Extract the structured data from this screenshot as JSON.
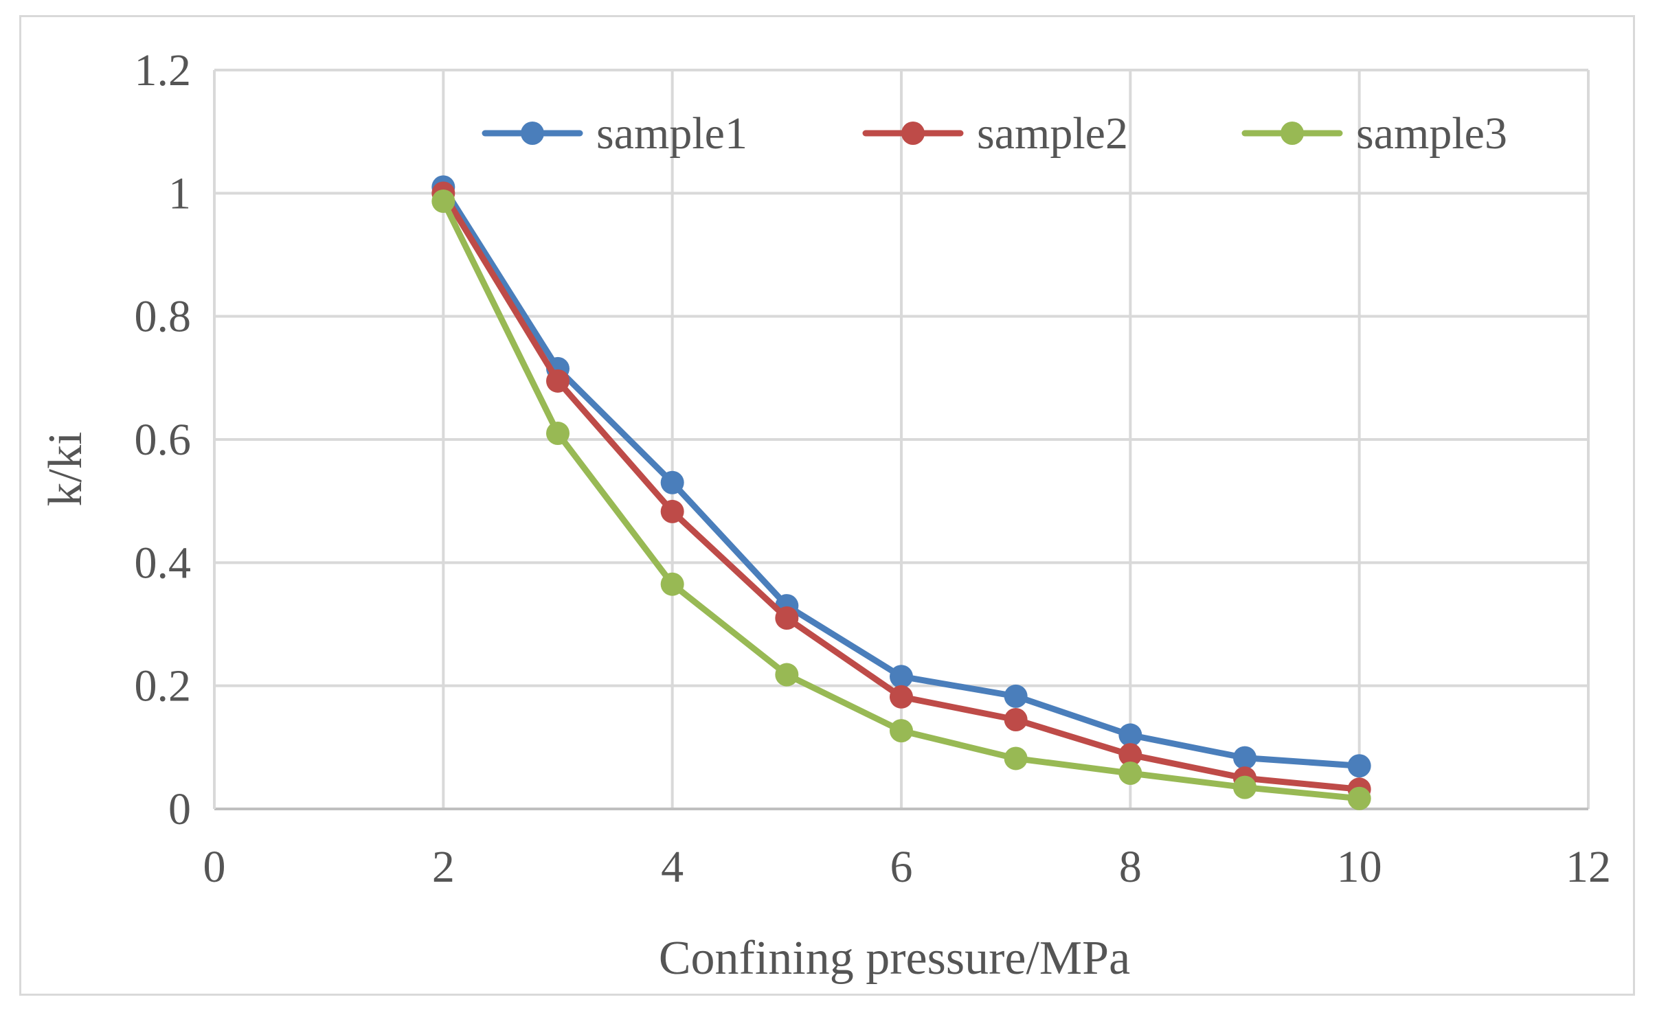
{
  "chart_data": {
    "type": "line",
    "title": "",
    "xlabel": "Confining pressure/MPa",
    "ylabel": "k/ki",
    "xlim": [
      0,
      12
    ],
    "ylim": [
      0,
      1.2
    ],
    "xticks": [
      0,
      2,
      4,
      6,
      8,
      10,
      12
    ],
    "yticks": [
      0,
      0.2,
      0.4,
      0.6,
      0.8,
      1,
      1.2
    ],
    "xtick_labels": [
      "0",
      "2",
      "4",
      "6",
      "8",
      "10",
      "12"
    ],
    "ytick_labels": [
      "0",
      "0.2",
      "0.4",
      "0.6",
      "0.8",
      "1",
      "1.2"
    ],
    "grid": true,
    "legend_position": "top",
    "x": [
      2,
      3,
      4,
      5,
      6,
      7,
      8,
      9,
      10
    ],
    "series": [
      {
        "name": "sample1",
        "color": "#4a7ebb",
        "values": [
          1.01,
          0.715,
          0.53,
          0.33,
          0.215,
          0.183,
          0.12,
          0.083,
          0.07
        ]
      },
      {
        "name": "sample2",
        "color": "#be4b48",
        "values": [
          1.0,
          0.695,
          0.483,
          0.31,
          0.182,
          0.145,
          0.088,
          0.05,
          0.032
        ]
      },
      {
        "name": "sample3",
        "color": "#98b954",
        "values": [
          0.987,
          0.61,
          0.365,
          0.218,
          0.127,
          0.082,
          0.058,
          0.035,
          0.017
        ]
      }
    ]
  }
}
